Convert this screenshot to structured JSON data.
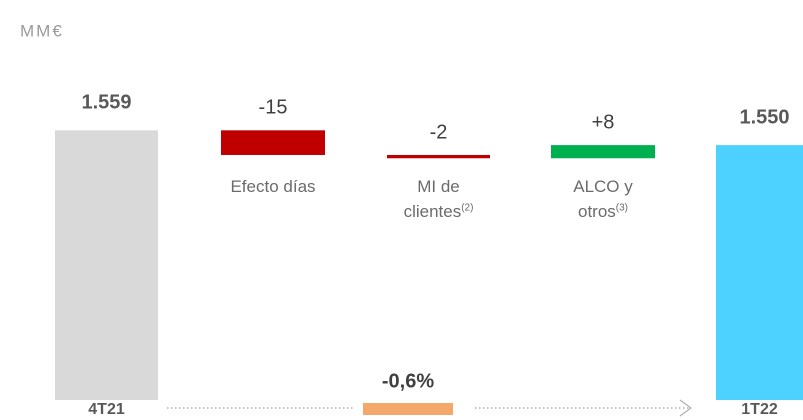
{
  "chart_data": {
    "type": "waterfall",
    "unit": "MM€",
    "categories": [
      "4T21",
      "Efecto días",
      "MI de clientes",
      "ALCO y otros",
      "1T22"
    ],
    "category_notes": [
      null,
      null,
      "(2)",
      "(3)",
      null
    ],
    "values": [
      1559,
      -15,
      -2,
      8,
      1550
    ],
    "value_labels": [
      "1.559",
      "-15",
      "-2",
      "+8",
      "1.550"
    ],
    "totals": [
      true,
      false,
      false,
      false,
      true
    ],
    "colors": [
      "#d9d9d9",
      "#c00000",
      "#c00000",
      "#00b050",
      "#4dd2ff"
    ],
    "change": {
      "value": -0.6,
      "label": "-0,6%",
      "color": "#f4a96a"
    },
    "ylim": [
      1395,
      1575
    ]
  }
}
